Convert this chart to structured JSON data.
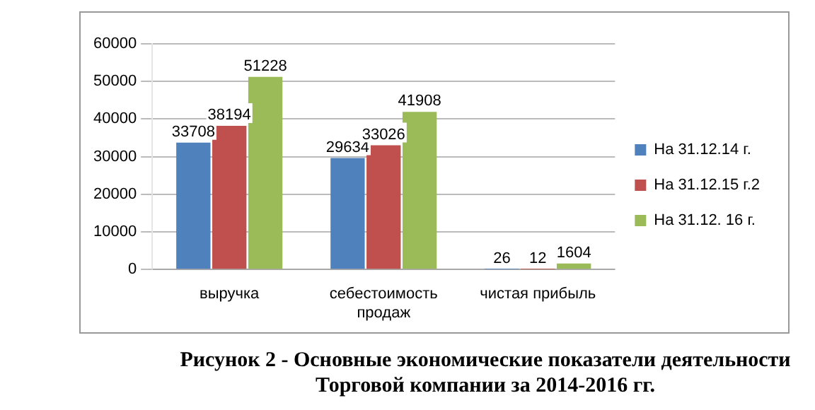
{
  "chart_data": {
    "type": "bar",
    "categories": [
      "выручка",
      "себестоимость продаж",
      "чистая прибыль"
    ],
    "series": [
      {
        "name": "На 31.12.14 г.",
        "color": "#4f81bd",
        "values": [
          33708,
          29634,
          26
        ]
      },
      {
        "name": "На 31.12.15 г.2",
        "color": "#c0504d",
        "values": [
          38194,
          33026,
          12
        ]
      },
      {
        "name": "На 31.12. 16 г.",
        "color": "#9bbb59",
        "values": [
          51228,
          41908,
          1604
        ]
      }
    ],
    "ylim": [
      0,
      60000
    ],
    "yticks": [
      0,
      10000,
      20000,
      30000,
      40000,
      50000,
      60000
    ],
    "grid": "y",
    "legend": "right",
    "data_labels": true,
    "annotations": [
      "Рисунок 2 - Основные экономические показатели деятельности Торговой компании за 2014-2016 гг."
    ]
  }
}
